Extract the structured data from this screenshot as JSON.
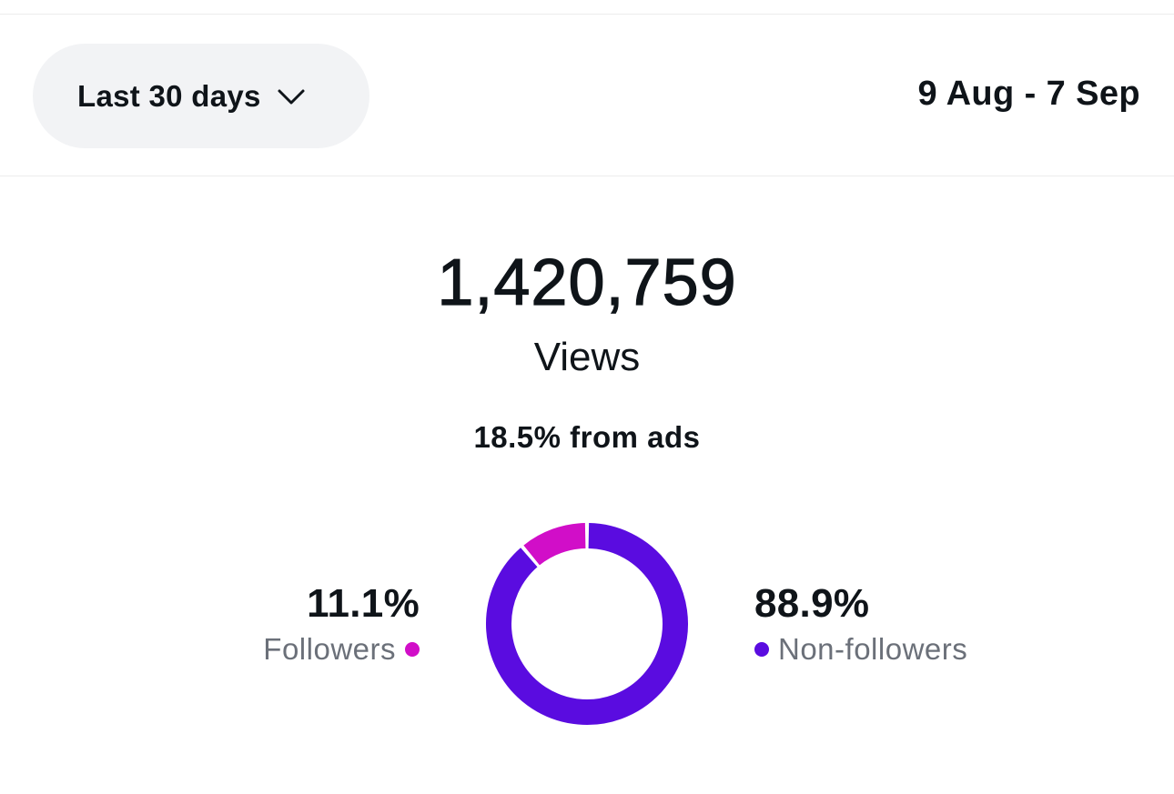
{
  "header": {
    "range_selector_label": "Last 30 days",
    "range_selector_icon": "chevron-down-icon",
    "date_range": "9 Aug - 7 Sep"
  },
  "summary": {
    "total_value": "1,420,759",
    "metric_label": "Views",
    "ads_share": "18.5% from ads"
  },
  "breakdown": {
    "followers": {
      "percent": "11.1%",
      "label": "Followers",
      "color": "#d10ec8"
    },
    "non_followers": {
      "percent": "88.9%",
      "label": "Non-followers",
      "color": "#5a0ce0"
    }
  },
  "chart_data": {
    "type": "pie",
    "categories": [
      "Followers",
      "Non-followers"
    ],
    "values": [
      11.1,
      88.9
    ],
    "colors": [
      "#d10ec8",
      "#5a0ce0"
    ]
  }
}
